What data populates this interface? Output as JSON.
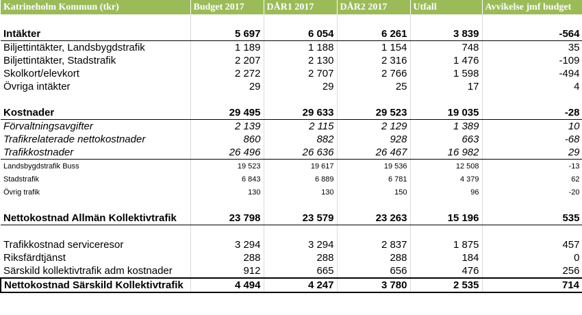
{
  "header": [
    "Katrineholm Kommun (tkr)",
    "Budget 2017",
    "DÅR1 2017",
    "DÅR2 2017",
    "Utfall",
    "Avvikelse jmf budget"
  ],
  "rows": [
    {
      "label": "Intäkter",
      "values": [
        "5 697",
        "6 054",
        "6 261",
        "3 839",
        "-564"
      ]
    },
    {
      "label": "Biljettintäkter, Landsbygdstrafik",
      "values": [
        "1 189",
        "1 188",
        "1 154",
        "748",
        "35"
      ]
    },
    {
      "label": "Biljettintäkter, Stadstrafik",
      "values": [
        "2 207",
        "2 130",
        "2 316",
        "1 476",
        "-109"
      ]
    },
    {
      "label": "Skolkort/elevkort",
      "values": [
        "2 272",
        "2 707",
        "2 766",
        "1 598",
        "-494"
      ]
    },
    {
      "label": "Övriga intäkter",
      "values": [
        "29",
        "29",
        "25",
        "17",
        "4"
      ]
    },
    {
      "label": "Kostnader",
      "values": [
        "29 495",
        "29 633",
        "29 523",
        "19 035",
        "-28"
      ]
    },
    {
      "label": "Förvaltningsavgifter",
      "values": [
        "2 139",
        "2 115",
        "2 129",
        "1 389",
        "10"
      ]
    },
    {
      "label": "Trafikrelaterade nettokostnader",
      "values": [
        "860",
        "882",
        "928",
        "663",
        "-68"
      ]
    },
    {
      "label": "Trafikkostnader",
      "values": [
        "26 496",
        "26 636",
        "26 467",
        "16 982",
        "29"
      ]
    },
    {
      "label": "Landsbygdstrafik Buss",
      "values": [
        "19 523",
        "19 617",
        "19 536",
        "12 508",
        "-13"
      ]
    },
    {
      "label": "Stadstrafik",
      "values": [
        "6 843",
        "6 889",
        "6 781",
        "4 379",
        "62"
      ]
    },
    {
      "label": "Övrig trafik",
      "values": [
        "130",
        "130",
        "150",
        "96",
        "-20"
      ]
    },
    {
      "label": "Nettokostnad Allmän Kollektivtrafik",
      "values": [
        "23 798",
        "23 579",
        "23 263",
        "15 196",
        "535"
      ]
    },
    {
      "label": "Trafikkostnad serviceresor",
      "values": [
        "3 294",
        "3 294",
        "2 837",
        "1 875",
        "457"
      ]
    },
    {
      "label": "Riksfärdtjänst",
      "values": [
        "288",
        "288",
        "288",
        "184",
        "0"
      ]
    },
    {
      "label": "Särskild kollektivtrafik adm kostnader",
      "values": [
        "912",
        "665",
        "656",
        "476",
        "256"
      ]
    },
    {
      "label": "Nettokostnad Särskild Kollektivtrafik",
      "values": [
        "4 494",
        "4 247",
        "3 780",
        "2 535",
        "714"
      ]
    }
  ]
}
